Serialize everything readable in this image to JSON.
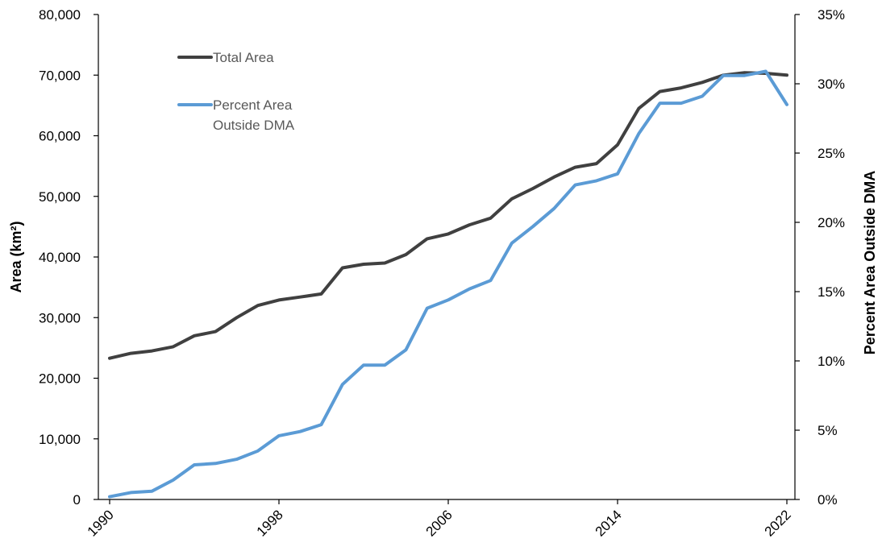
{
  "chart_data": {
    "type": "line",
    "title": "",
    "xlabel": "",
    "ylabel": "Area (km²)",
    "y2label": "Percent Area Outside DMA",
    "x_ticks": [
      "1990",
      "1998",
      "2006",
      "2014",
      "2022"
    ],
    "xlim": [
      1990,
      2022
    ],
    "ylim": [
      0,
      80000
    ],
    "y2lim": [
      0,
      35
    ],
    "y_ticks": [
      "0",
      "10,000",
      "20,000",
      "30,000",
      "40,000",
      "50,000",
      "60,000",
      "70,000",
      "80,000"
    ],
    "y2_ticks": [
      "0%",
      "5%",
      "10%",
      "15%",
      "20%",
      "25%",
      "30%",
      "35%"
    ],
    "legend_position": "top-left",
    "grid": false,
    "x": [
      1990,
      1991,
      1992,
      1993,
      1994,
      1995,
      1996,
      1997,
      1998,
      1999,
      2000,
      2001,
      2002,
      2003,
      2004,
      2005,
      2006,
      2007,
      2008,
      2009,
      2010,
      2011,
      2012,
      2013,
      2014,
      2015,
      2016,
      2017,
      2018,
      2019,
      2020,
      2021,
      2022
    ],
    "series": [
      {
        "name": "Total Area",
        "axis": "left",
        "color": "#404040",
        "values": [
          23300,
          24100,
          24500,
          25200,
          27000,
          27700,
          30000,
          32000,
          32900,
          33400,
          33900,
          38200,
          38800,
          39000,
          40400,
          43000,
          43800,
          45300,
          46400,
          49600,
          51300,
          53200,
          54800,
          55400,
          58500,
          64500,
          67300,
          67900,
          68800,
          70000,
          70400,
          70300,
          70000
        ]
      },
      {
        "name": "Percent Area Outside DMA",
        "axis": "right",
        "color": "#5B9BD5",
        "values": [
          0.2,
          0.5,
          0.6,
          1.4,
          2.5,
          2.6,
          2.9,
          3.5,
          4.6,
          4.9,
          5.4,
          8.3,
          9.7,
          9.7,
          10.8,
          13.8,
          14.4,
          15.2,
          15.8,
          18.5,
          19.7,
          21.0,
          22.7,
          23.0,
          23.5,
          26.4,
          28.6,
          28.6,
          29.1,
          30.6,
          30.6,
          30.9,
          28.5
        ]
      }
    ]
  }
}
